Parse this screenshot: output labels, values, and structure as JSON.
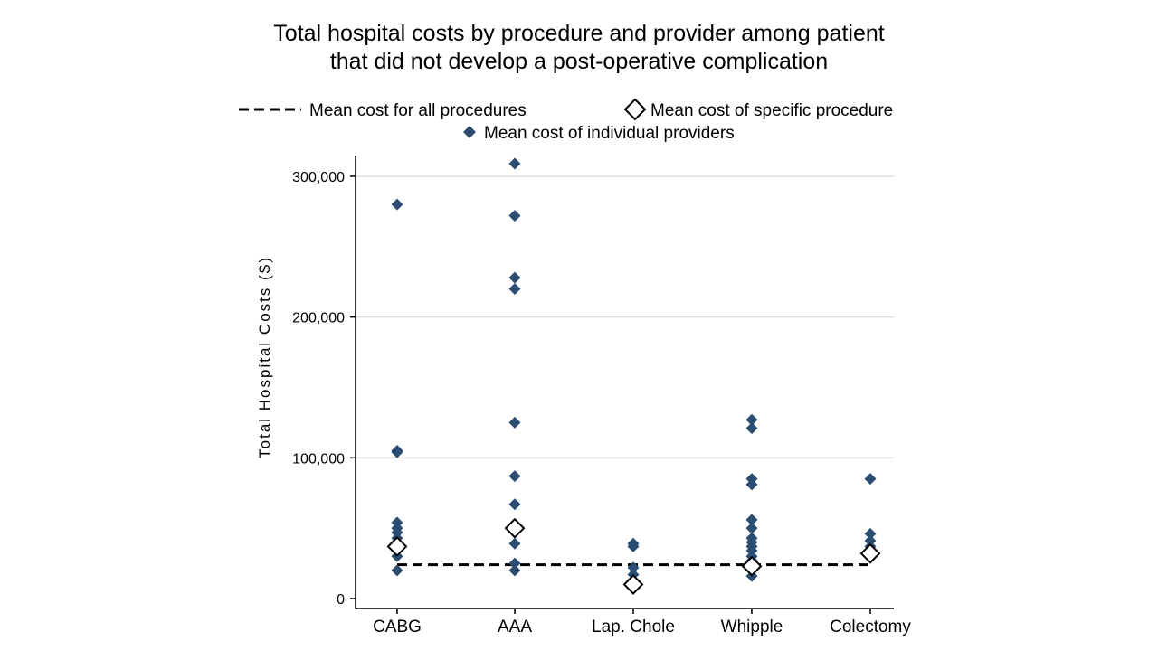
{
  "chart_data": {
    "type": "scatter",
    "title": [
      "Total hospital costs by procedure and provider among patient",
      "that did not develop a post-operative complication"
    ],
    "ylabel": "Total Hospital Costs ($)",
    "xlabel": "",
    "ylim": [
      0,
      300000
    ],
    "yticks": [
      0,
      100000,
      200000,
      300000
    ],
    "ytick_labels": [
      "0",
      "100,000",
      "200,000",
      "300,000"
    ],
    "grid": true,
    "legend": {
      "placement": "top",
      "entries": [
        "Mean cost for all procedures",
        "Mean cost of specific procedure",
        "Mean cost of individual providers"
      ]
    },
    "categories": [
      "CABG",
      "AAA",
      "Lap. Chole",
      "Whipple",
      "Colectomy"
    ],
    "overall_mean": 24000,
    "procedure_means": [
      37000,
      50000,
      10000,
      23000,
      32000
    ],
    "providers": [
      [
        280000,
        105000,
        104000,
        54000,
        50000,
        47000,
        43000,
        40000,
        30000,
        20000
      ],
      [
        309000,
        272000,
        228000,
        220000,
        125000,
        87000,
        67000,
        48000,
        39000,
        25000,
        20000
      ],
      [
        39000,
        37000,
        22000,
        17000,
        12000
      ],
      [
        127000,
        121000,
        85000,
        81000,
        56000,
        50000,
        43000,
        40000,
        37000,
        34000,
        30000,
        27000,
        24000,
        20000,
        16000
      ],
      [
        85000,
        46000,
        41000,
        37000,
        33000,
        29000
      ]
    ],
    "colors": {
      "provider": "#2a4d71",
      "procedure_marker": "#ffffff",
      "mean_line": "#000000",
      "grid": "#d9e1e6"
    }
  }
}
